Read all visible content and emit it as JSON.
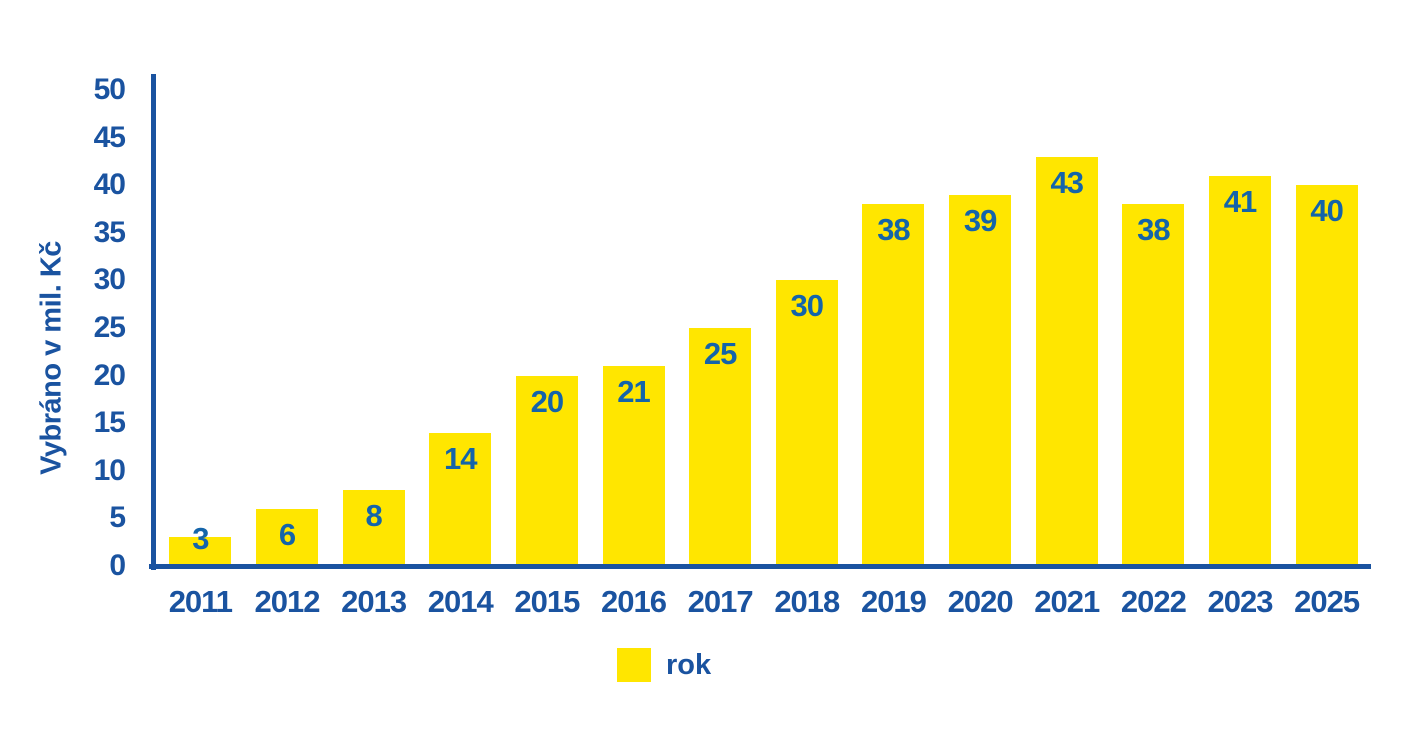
{
  "chart_data": {
    "type": "bar",
    "categories": [
      "2011",
      "2012",
      "2013",
      "2014",
      "2015",
      "2016",
      "2017",
      "2018",
      "2019",
      "2020",
      "2021",
      "2022",
      "2023",
      "2025"
    ],
    "values": [
      3,
      6,
      8,
      14,
      20,
      21,
      25,
      30,
      38,
      39,
      43,
      38,
      41,
      40
    ],
    "title": "",
    "xlabel": "",
    "ylabel": "Vybráno v mil. Kč",
    "ylim": [
      0,
      50
    ],
    "yticks": [
      0,
      5,
      10,
      15,
      20,
      25,
      30,
      35,
      40,
      45,
      50
    ],
    "grid": false,
    "legend": {
      "label": "rok",
      "position": "bottom"
    },
    "colors": {
      "bar": "#FFE600",
      "axis": "#1A53A0",
      "value_label": "#1464AA"
    }
  }
}
